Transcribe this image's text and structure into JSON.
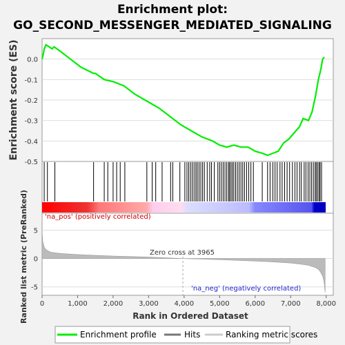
{
  "title_line1": "Enrichment plot:",
  "title_line2": "GO_SECOND_MESSENGER_MEDIATED_SIGNALING",
  "colors": {
    "es_line": "#00ee00",
    "hits": "#000000",
    "metric_fill": "#bbbbbb",
    "pos_label": "#cc0000",
    "neg_label": "#2222cc"
  },
  "chart_data": [
    {
      "type": "line",
      "name": "enrichment-score",
      "ylabel": "Enrichment score (ES)",
      "xlim": [
        0,
        8200
      ],
      "ylim": [
        -0.5,
        0.1
      ],
      "yticks": [
        0.0,
        -0.1,
        -0.2,
        -0.3,
        -0.4,
        -0.5
      ],
      "ytick_labels": [
        "0.0",
        "-0.1",
        "-0.2",
        "-0.3",
        "-0.4",
        "-0.5"
      ],
      "x": [
        0,
        30,
        60,
        110,
        200,
        280,
        340,
        500,
        800,
        1100,
        1450,
        1500,
        1750,
        2000,
        2300,
        2600,
        3000,
        3300,
        3600,
        3900,
        4200,
        4500,
        4800,
        5000,
        5200,
        5400,
        5600,
        5800,
        6000,
        6200,
        6350,
        6500,
        6650,
        6800,
        6950,
        7100,
        7250,
        7350,
        7500,
        7600,
        7700,
        7780,
        7850,
        7900,
        7950
      ],
      "y": [
        0.0,
        0.02,
        0.05,
        0.07,
        0.06,
        0.05,
        0.06,
        0.04,
        0.0,
        -0.04,
        -0.07,
        -0.07,
        -0.1,
        -0.11,
        -0.13,
        -0.17,
        -0.21,
        -0.24,
        -0.28,
        -0.32,
        -0.35,
        -0.38,
        -0.4,
        -0.42,
        -0.43,
        -0.42,
        -0.43,
        -0.43,
        -0.45,
        -0.46,
        -0.47,
        -0.46,
        -0.45,
        -0.41,
        -0.39,
        -0.36,
        -0.33,
        -0.29,
        -0.3,
        -0.26,
        -0.18,
        -0.1,
        -0.05,
        0.0,
        0.01
      ]
    },
    {
      "type": "scatter",
      "name": "hits",
      "positions": [
        60,
        150,
        360,
        1450,
        1750,
        1850,
        2000,
        2100,
        2200,
        2330,
        2950,
        3100,
        3200,
        3380,
        3620,
        3680,
        3880,
        4020,
        4080,
        4130,
        4180,
        4230,
        4280,
        4330,
        4370,
        4420,
        4470,
        4520,
        4570,
        4650,
        4720,
        4770,
        4850,
        4950,
        5000,
        5050,
        5100,
        5150,
        5200,
        5250,
        5280,
        5320,
        5360,
        5400,
        5450,
        5500,
        5550,
        5600,
        5650,
        5700,
        5760,
        5820,
        5880,
        5950,
        6200,
        6350,
        6420,
        6500,
        6560,
        6620,
        6700,
        6760,
        6830,
        6900,
        6970,
        7050,
        7120,
        7180,
        7250,
        7300,
        7380,
        7430,
        7490,
        7540,
        7590,
        7640,
        7690,
        7720,
        7760,
        7800,
        7830,
        7870
      ]
    },
    {
      "type": "area",
      "name": "ranked-list-metric",
      "ylabel": "Ranked list metric (PreRanked)",
      "xlabel": "Rank in Ordered Dataset",
      "xlim": [
        0,
        8200
      ],
      "ylim": [
        -6.5,
        8
      ],
      "yticks": [
        5,
        0,
        -5
      ],
      "ytick_labels": [
        "5",
        "0",
        "-5"
      ],
      "xticks": [
        0,
        1000,
        2000,
        3000,
        4000,
        5000,
        6000,
        7000,
        8000
      ],
      "xtick_labels": [
        "0",
        "1,000",
        "2,000",
        "3,000",
        "4,000",
        "5,000",
        "6,000",
        "7,000",
        "8,000"
      ],
      "x": [
        0,
        20,
        60,
        120,
        250,
        500,
        1000,
        1500,
        2000,
        2500,
        3000,
        3500,
        3965,
        4500,
        5000,
        5500,
        6000,
        6500,
        7000,
        7300,
        7500,
        7700,
        7800,
        7850,
        7900,
        7930,
        7950,
        7960,
        7970
      ],
      "values": [
        4.8,
        3.0,
        2.0,
        1.5,
        1.1,
        0.9,
        0.7,
        0.55,
        0.45,
        0.35,
        0.25,
        0.12,
        0.0,
        -0.1,
        -0.2,
        -0.32,
        -0.45,
        -0.6,
        -0.8,
        -1.0,
        -1.2,
        -1.6,
        -2.0,
        -2.5,
        -3.1,
        -3.8,
        -4.6,
        -5.3,
        -6.0
      ],
      "zero_cross_label": "Zero cross at 3965",
      "zero_cross": 3965,
      "pos_label": "'na_pos' (positively correlated)",
      "neg_label": "'na_neg' (negatively correlated)"
    }
  ],
  "legend": {
    "placement": "bottom",
    "items": [
      "Enrichment profile",
      "Hits",
      "Ranking metric scores"
    ]
  }
}
